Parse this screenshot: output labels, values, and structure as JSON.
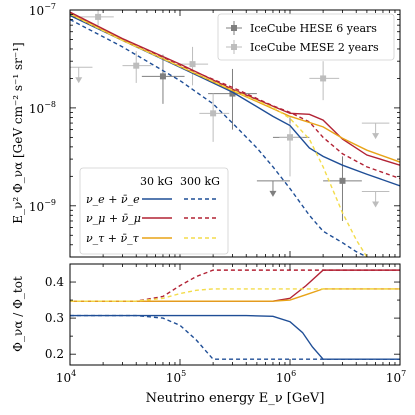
{
  "colors": {
    "nue": "#1f4e96",
    "numu": "#b22234",
    "nutau": "#e8a317",
    "nutau_300": "#f3dc4a",
    "hese": "#7f7f7f",
    "mese": "#bdbdbd"
  },
  "chart_data": [
    {
      "type": "line",
      "panel": "top",
      "ylabel": "E_ν² Φ_να [GeV cm⁻² s⁻¹ sr⁻¹]",
      "xscale": "log",
      "yscale": "log",
      "xlim": [
        10000,
        10000000
      ],
      "ylim": [
        3e-10,
        1e-07
      ],
      "y_ticks": [
        {
          "v": 1e-09,
          "label": "10",
          "exp": "−9"
        },
        {
          "v": 1e-08,
          "label": "10",
          "exp": "−8"
        },
        {
          "v": 1e-07,
          "label": "10",
          "exp": "−7"
        }
      ],
      "legend_data": [
        "IceCube HESE 6 years",
        "IceCube MESE 2 years"
      ],
      "legend_series": {
        "col30": "30 kG",
        "col300": "300 kG",
        "rows": [
          {
            "label": "ν_e + ν̄_e",
            "key": "nue"
          },
          {
            "label": "ν_μ + ν̄_μ",
            "key": "numu"
          },
          {
            "label": "ν_τ + ν̄_τ",
            "key": "nutau"
          }
        ]
      },
      "series": [
        {
          "flavor": "nue",
          "field": "30 kG",
          "style": "solid",
          "x": [
            10000,
            30000,
            100000,
            300000,
            700000,
            1000000,
            1500000,
            2000000,
            3000000,
            5000000,
            10000000
          ],
          "y": [
            8.8e-08,
            4.9e-08,
            2.6e-08,
            1.45e-08,
            8.2e-09,
            6.6e-09,
            3.9e-09,
            3.2e-09,
            2.6e-09,
            2.1e-09,
            1.6e-09
          ]
        },
        {
          "flavor": "nue",
          "field": "300 kG",
          "style": "dashed",
          "x": [
            10000,
            30000,
            100000,
            200000,
            300000,
            500000,
            700000,
            1000000,
            1500000,
            2000000,
            3000000,
            4000000,
            5000000
          ],
          "y": [
            8e-08,
            4.2e-08,
            1.9e-08,
            1.1e-08,
            7e-09,
            3.9e-09,
            2.5e-09,
            1.5e-09,
            8e-10,
            5.5e-10,
            4.2e-10,
            3.4e-10,
            3e-10
          ]
        },
        {
          "flavor": "numu",
          "field": "30 kG",
          "style": "solid",
          "x": [
            10000,
            30000,
            100000,
            300000,
            1000000,
            1500000,
            2000000,
            3000000,
            5000000,
            10000000
          ],
          "y": [
            9.5e-08,
            5.1e-08,
            2.8e-08,
            1.55e-08,
            8.8e-09,
            8.6e-09,
            7.5e-09,
            4.8e-09,
            3.3e-09,
            2.6e-09
          ]
        },
        {
          "flavor": "numu",
          "field": "300 kG",
          "style": "dashed",
          "x": [
            10000,
            30000,
            100000,
            300000,
            700000,
            1000000,
            1500000,
            2000000,
            3000000,
            5000000,
            10000000
          ],
          "y": [
            9.3e-08,
            5e-08,
            2.7e-08,
            1.62e-08,
            1.05e-08,
            9e-09,
            7.2e-09,
            5e-09,
            3.4e-09,
            2.5e-09,
            1.9e-09
          ]
        },
        {
          "flavor": "nutau",
          "field": "30 kG",
          "style": "solid",
          "x": [
            10000,
            30000,
            100000,
            300000,
            1000000,
            2000000,
            3000000,
            5000000,
            10000000
          ],
          "y": [
            9.1e-08,
            4.9e-08,
            2.65e-08,
            1.5e-08,
            8.2e-09,
            6.4e-09,
            4.9e-09,
            3.7e-09,
            2.8e-09
          ]
        },
        {
          "flavor": "nutau",
          "field": "300 kG",
          "style": "dashed",
          "x": [
            10000,
            30000,
            100000,
            300000,
            700000,
            1000000,
            1500000,
            2000000,
            3000000,
            4000000,
            5000000
          ],
          "y": [
            9.1e-08,
            4.9e-08,
            2.65e-08,
            1.52e-08,
            1.01e-08,
            7.8e-09,
            4.8e-09,
            2.5e-09,
            8.5e-10,
            4.5e-10,
            3e-10
          ]
        }
      ],
      "hese_points": [
        {
          "x": 70000,
          "y": 2.1e-08,
          "xerr": [
            45000,
            110000
          ],
          "yerr": [
            1.1e-08,
            3.5e-08
          ]
        },
        {
          "x": 300000,
          "y": 1.4e-08,
          "xerr": [
            180000,
            500000
          ],
          "yerr": [
            6e-09,
            2.5e-08
          ]
        },
        {
          "x": 1000000,
          "y": 5e-09,
          "xerr": [
            700000,
            1500000
          ],
          "yerr": [
            2.5e-09,
            8e-09
          ]
        },
        {
          "x": 3000000,
          "y": 1.8e-09,
          "xerr": [
            2000000,
            4500000
          ],
          "yerr": [
            7e-10,
            3.2e-09
          ]
        },
        {
          "x": 700000,
          "y": 1.8e-09,
          "upper_limit": true,
          "xerr": [
            500000,
            1000000
          ]
        }
      ],
      "mese_points": [
        {
          "x": 18000,
          "y": 8.5e-08,
          "xerr": [
            12000,
            25000
          ],
          "yerr": [
            7e-08,
            1e-07
          ]
        },
        {
          "x": 40000,
          "y": 2.7e-08,
          "xerr": [
            30000,
            55000
          ],
          "yerr": [
            1.8e-08,
            3.8e-08
          ]
        },
        {
          "x": 130000,
          "y": 2.8e-08,
          "xerr": [
            100000,
            180000
          ],
          "yerr": [
            1.7e-08,
            4.2e-08
          ]
        },
        {
          "x": 200000,
          "y": 8.8e-09,
          "xerr": [
            150000,
            280000
          ],
          "yerr": [
            4.5e-09,
            1.4e-08
          ]
        },
        {
          "x": 1000000,
          "y": 5e-09,
          "xerr": [
            800000,
            1300000
          ],
          "yerr": [
            2e-09,
            7e-09
          ]
        },
        {
          "x": 2000000,
          "y": 2e-08,
          "xerr": [
            1500000,
            2800000
          ],
          "yerr": [
            1.2e-08,
            3e-08
          ]
        },
        {
          "x": 12000,
          "y": 2.6e-08,
          "upper_limit": true,
          "xerr": [
            10000,
            16000
          ]
        },
        {
          "x": 6000000,
          "y": 7e-09,
          "upper_limit": true,
          "xerr": [
            4500000,
            8000000
          ]
        },
        {
          "x": 6000000,
          "y": 1.4e-09,
          "upper_limit": true,
          "xerr": [
            4500000,
            8000000
          ]
        }
      ]
    },
    {
      "type": "line",
      "panel": "bottom",
      "xlabel": "Neutrino energy E_ν [GeV]",
      "ylabel": "Φ_να / Φ_tot",
      "xscale": "log",
      "xlim": [
        10000,
        10000000
      ],
      "ylim": [
        0.17,
        0.45
      ],
      "x_ticks": [
        {
          "v": 10000,
          "label": "10",
          "exp": "4"
        },
        {
          "v": 100000,
          "label": "10",
          "exp": "5"
        },
        {
          "v": 1000000,
          "label": "10",
          "exp": "6"
        },
        {
          "v": 10000000,
          "label": "10",
          "exp": "7"
        }
      ],
      "y_ticks": [
        {
          "v": 0.2,
          "label": "0.2"
        },
        {
          "v": 0.3,
          "label": "0.3"
        },
        {
          "v": 0.4,
          "label": "0.4"
        }
      ],
      "series": [
        {
          "flavor": "nue",
          "field": "30 kG",
          "style": "solid",
          "x": [
            10000,
            400000,
            700000,
            1000000,
            1300000,
            1600000,
            2000000,
            10000000
          ],
          "y": [
            0.307,
            0.307,
            0.305,
            0.29,
            0.26,
            0.22,
            0.186,
            0.186
          ]
        },
        {
          "flavor": "nue",
          "field": "300 kG",
          "style": "dashed",
          "x": [
            10000,
            40000,
            70000,
            100000,
            140000,
            200000,
            10000000
          ],
          "y": [
            0.307,
            0.307,
            0.3,
            0.28,
            0.24,
            0.186,
            0.186
          ]
        },
        {
          "flavor": "numu",
          "field": "30 kG",
          "style": "solid",
          "x": [
            10000,
            700000,
            1000000,
            1400000,
            2000000,
            10000000
          ],
          "y": [
            0.347,
            0.347,
            0.355,
            0.39,
            0.433,
            0.433
          ]
        },
        {
          "flavor": "numu",
          "field": "300 kG",
          "style": "dashed",
          "x": [
            10000,
            40000,
            70000,
            100000,
            140000,
            200000,
            10000000
          ],
          "y": [
            0.347,
            0.347,
            0.36,
            0.39,
            0.415,
            0.433,
            0.433
          ]
        },
        {
          "flavor": "nutau",
          "field": "30 kG",
          "style": "solid",
          "x": [
            10000,
            700000,
            1000000,
            1400000,
            2000000,
            10000000
          ],
          "y": [
            0.347,
            0.347,
            0.35,
            0.365,
            0.381,
            0.381
          ]
        },
        {
          "flavor": "nutau",
          "field": "300 kG",
          "style": "dashed",
          "x": [
            10000,
            40000,
            70000,
            100000,
            140000,
            200000,
            10000000
          ],
          "y": [
            0.347,
            0.347,
            0.355,
            0.368,
            0.377,
            0.381,
            0.381
          ]
        }
      ]
    }
  ]
}
